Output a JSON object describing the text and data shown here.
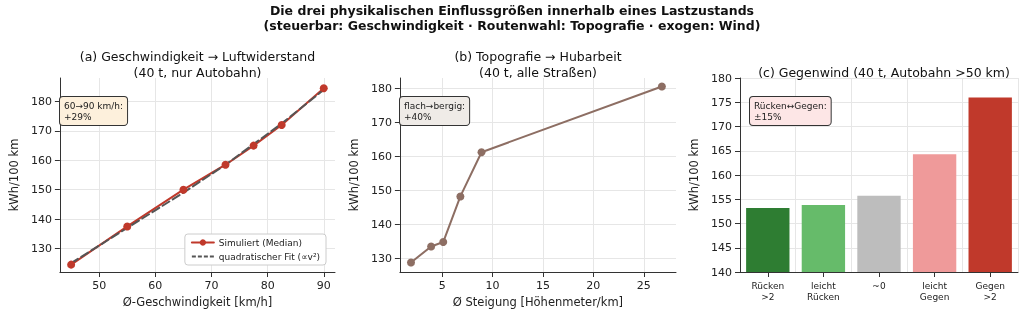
{
  "chart_data": [
    {
      "type": "line",
      "title": "(a) Geschwindigkeit → Luftwiderstand\n(40 t, nur Autobahn)",
      "xlabel": "Ø-Geschwindigkeit [km/h]",
      "ylabel": "kWh/100 km",
      "annotations": [
        "Die drei physikalischen Einflussgrößen innerhalb eines Lastzustands\n(steuerbar: Geschwindigkeit · Routenwahl: Topografie · exogen: Wind)",
        "60→90 km/h:\n+29%"
      ],
      "x": [
        45,
        55,
        65,
        72.5,
        77.5,
        82.5,
        90
      ],
      "series": [
        {
          "name": "Simuliert (Median)",
          "color": "#c0392b",
          "values": [
            124.5,
            137.5,
            150,
            158.5,
            165,
            172,
            184.5
          ],
          "marker": "circle",
          "line_style": "solid"
        },
        {
          "name": "quadratischer Fit (∝v²)",
          "color": "#555555",
          "values": [
            125,
            137,
            149,
            158.5,
            165.5,
            172.5,
            184
          ],
          "marker": "none",
          "line_style": "dashed"
        }
      ],
      "xlim": [
        43,
        92
      ],
      "xticks": [
        50,
        60,
        70,
        80,
        90
      ],
      "ylim": [
        122,
        188
      ],
      "yticks": [
        130,
        140,
        150,
        160,
        170,
        180
      ],
      "grid": true,
      "legend": "bottom right"
    },
    {
      "type": "line",
      "title": "(b) Topografie → Hubarbeit\n(40 t, alle Straßen)",
      "xlabel": "Ø Steigung [Höhenmeter/km]",
      "ylabel": "kWh/100 km",
      "annotations": [
        "flach→bergig:\n+40%"
      ],
      "x": [
        1.9,
        3.9,
        5.1,
        6.8,
        8.9,
        26.8
      ],
      "series": [
        {
          "color": "#8d6e63",
          "values": [
            128.8,
            133.5,
            134.8,
            148.2,
            161.2,
            180.5
          ]
        }
      ],
      "marker": "circle",
      "xlim": [
        0.8,
        28.2
      ],
      "xticks": [
        5,
        10,
        15,
        20,
        25
      ],
      "ylim": [
        126,
        183
      ],
      "yticks": [
        130,
        140,
        150,
        160,
        170,
        180
      ],
      "grid": true
    },
    {
      "type": "bar",
      "title": "(c) Gegenwind (40 t, Autobahn >50 km)",
      "ylabel": "kWh/100 km",
      "annotations": [
        "Rücken↔Gegen:\n±15%"
      ],
      "categories": [
        "Rücken\n>2",
        "leicht\nRücken",
        "~0",
        "leicht\nGegen",
        "Gegen\n>2"
      ],
      "values": [
        153.2,
        153.8,
        155.7,
        164.3,
        176
      ],
      "colors": [
        "#2e7d32",
        "#66bb6a",
        "#bdbdbd",
        "#ef9a9a",
        "#c0392b"
      ],
      "ylim": [
        140,
        180
      ],
      "yticks": [
        140,
        145,
        150,
        155,
        160,
        165,
        170,
        175,
        180
      ],
      "grid": true
    }
  ]
}
